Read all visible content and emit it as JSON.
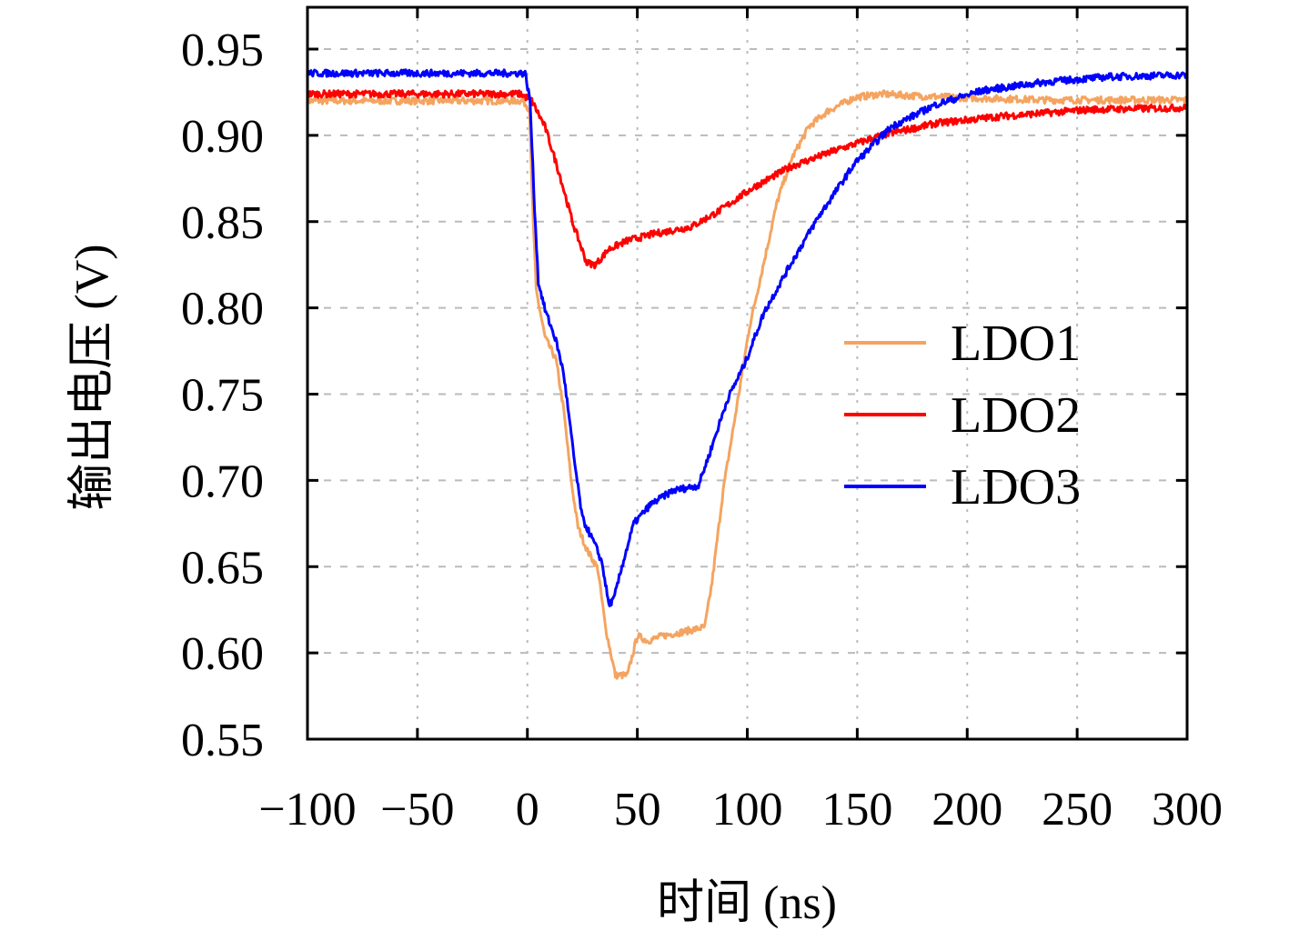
{
  "chart_data": {
    "type": "line",
    "title": "",
    "xlabel": "时间 (ns)",
    "ylabel": "输出电压 (V)",
    "xlim": [
      -100,
      300
    ],
    "ylim": [
      0.55,
      0.97
    ],
    "xticks": [
      -100,
      -50,
      0,
      50,
      100,
      150,
      200,
      250,
      300
    ],
    "xtick_labels": [
      "−100",
      "−50",
      "0",
      "50",
      "100",
      "150",
      "200",
      "250",
      "300"
    ],
    "yticks": [
      0.55,
      0.6,
      0.65,
      0.7,
      0.75,
      0.8,
      0.85,
      0.9,
      0.95
    ],
    "ytick_labels": [
      "0.55",
      "0.60",
      "0.65",
      "0.70",
      "0.75",
      "0.80",
      "0.85",
      "0.90",
      "0.95"
    ],
    "grid": true,
    "legend_position": "center-right",
    "series": [
      {
        "name": "LDO1",
        "color": "#f4a460",
        "x": [
          -100,
          -2,
          1,
          2,
          4,
          8,
          13,
          16.5,
          20,
          23,
          27,
          32,
          35.5,
          40,
          45.5,
          50,
          54.6,
          62,
          70,
          80.7,
          84,
          89,
          95,
          101,
          107.5,
          113.7,
          120,
          128,
          136.5,
          149,
          161,
          174,
          194,
          236,
          300
        ],
        "y": [
          0.92,
          0.92,
          0.915,
          0.87,
          0.81,
          0.783,
          0.77,
          0.741,
          0.699,
          0.673,
          0.66,
          0.649,
          0.615,
          0.587,
          0.587,
          0.61,
          0.607,
          0.61,
          0.612,
          0.615,
          0.641,
          0.694,
          0.741,
          0.789,
          0.826,
          0.862,
          0.886,
          0.905,
          0.914,
          0.922,
          0.924,
          0.923,
          0.922,
          0.9205,
          0.9205
        ]
      },
      {
        "name": "LDO2",
        "color": "#ff0000",
        "x": [
          -100,
          -3,
          2,
          8,
          14.5,
          20.7,
          27,
          31,
          37,
          45.5,
          58,
          74.5,
          87,
          103,
          120,
          140.6,
          161,
          186,
          215,
          256.5,
          300
        ],
        "y": [
          0.924,
          0.924,
          0.92,
          0.905,
          0.878,
          0.849,
          0.826,
          0.825,
          0.834,
          0.839,
          0.843,
          0.847,
          0.856,
          0.87,
          0.882,
          0.8915,
          0.9,
          0.907,
          0.911,
          0.915,
          0.916
        ]
      },
      {
        "name": "LDO3",
        "color": "#0000ff",
        "x": [
          -100,
          -1,
          1.2,
          3.3,
          5,
          8,
          13,
          16.5,
          21.5,
          25,
          31,
          34,
          37,
          39.3,
          43.4,
          48.4,
          56,
          66,
          77.8,
          82.7,
          91,
          99,
          107.5,
          120,
          132,
          149,
          165.5,
          186,
          207,
          236,
          265,
          300
        ],
        "y": [
          0.936,
          0.936,
          0.92,
          0.857,
          0.815,
          0.799,
          0.781,
          0.762,
          0.71,
          0.678,
          0.662,
          0.652,
          0.628,
          0.631,
          0.652,
          0.675,
          0.686,
          0.694,
          0.697,
          0.715,
          0.747,
          0.768,
          0.797,
          0.826,
          0.852,
          0.884,
          0.905,
          0.918,
          0.926,
          0.931,
          0.934,
          0.935
        ]
      }
    ]
  }
}
